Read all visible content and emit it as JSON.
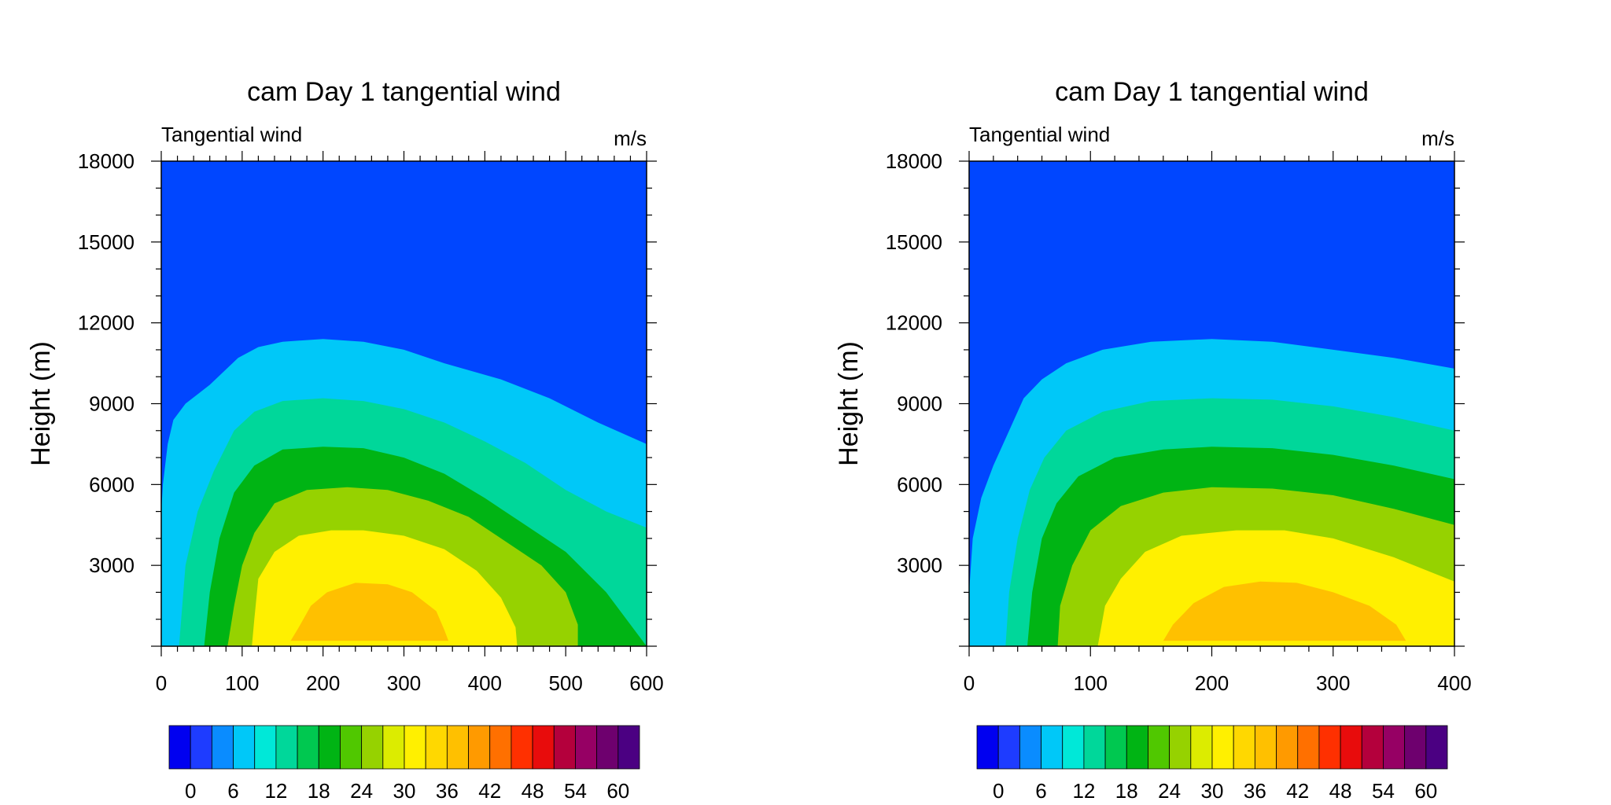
{
  "chart_data": [
    {
      "type": "contour",
      "title": "cam Day 1 tangential wind",
      "left_string": "Tangential wind",
      "right_string": "m/s",
      "ylabel": "Height (m)",
      "xlim": [
        0,
        600
      ],
      "ylim": [
        0,
        18000
      ],
      "x_ticks": [
        "0",
        "100",
        "200",
        "300",
        "400",
        "500",
        "600"
      ],
      "y_ticks": [
        "3000",
        "6000",
        "9000",
        "12000",
        "15000",
        "18000"
      ],
      "contour_bands": [
        {
          "min": 6,
          "max": 12,
          "points": [
            [
              0,
              5000
            ],
            [
              2,
              6000
            ],
            [
              8,
              7500
            ],
            [
              15,
              8400
            ],
            [
              30,
              9000
            ],
            [
              60,
              9700
            ],
            [
              95,
              10700
            ],
            [
              120,
              11100
            ],
            [
              150,
              11300
            ],
            [
              200,
              11400
            ],
            [
              250,
              11300
            ],
            [
              300,
              11000
            ],
            [
              350,
              10500
            ],
            [
              420,
              9900
            ],
            [
              480,
              9200
            ],
            [
              540,
              8300
            ],
            [
              600,
              7500
            ],
            [
              600,
              0
            ],
            [
              0,
              0
            ]
          ]
        },
        {
          "min": 12,
          "max": 18,
          "points": [
            [
              22,
              0
            ],
            [
              30,
              3000
            ],
            [
              45,
              5000
            ],
            [
              65,
              6500
            ],
            [
              90,
              8000
            ],
            [
              115,
              8700
            ],
            [
              150,
              9100
            ],
            [
              200,
              9200
            ],
            [
              250,
              9100
            ],
            [
              300,
              8800
            ],
            [
              350,
              8300
            ],
            [
              400,
              7600
            ],
            [
              450,
              6800
            ],
            [
              500,
              5800
            ],
            [
              550,
              5000
            ],
            [
              600,
              4400
            ],
            [
              600,
              0
            ]
          ]
        },
        {
          "min": 18,
          "max": 24,
          "points": [
            [
              53,
              0
            ],
            [
              60,
              2000
            ],
            [
              72,
              4000
            ],
            [
              90,
              5700
            ],
            [
              115,
              6700
            ],
            [
              150,
              7300
            ],
            [
              200,
              7400
            ],
            [
              250,
              7350
            ],
            [
              300,
              7000
            ],
            [
              350,
              6400
            ],
            [
              400,
              5500
            ],
            [
              450,
              4500
            ],
            [
              500,
              3500
            ],
            [
              550,
              2000
            ],
            [
              600,
              0
            ]
          ]
        },
        {
          "min": 24,
          "max": 30,
          "points": [
            [
              82,
              0
            ],
            [
              90,
              1500
            ],
            [
              100,
              3000
            ],
            [
              115,
              4200
            ],
            [
              140,
              5300
            ],
            [
              180,
              5800
            ],
            [
              230,
              5900
            ],
            [
              280,
              5800
            ],
            [
              330,
              5400
            ],
            [
              380,
              4800
            ],
            [
              420,
              4000
            ],
            [
              470,
              3000
            ],
            [
              500,
              2000
            ],
            [
              515,
              800
            ],
            [
              515,
              0
            ]
          ]
        },
        {
          "min": 30,
          "max": 36,
          "points": [
            [
              112,
              0
            ],
            [
              115,
              1000
            ],
            [
              120,
              2500
            ],
            [
              140,
              3500
            ],
            [
              170,
              4100
            ],
            [
              210,
              4300
            ],
            [
              250,
              4300
            ],
            [
              300,
              4100
            ],
            [
              350,
              3600
            ],
            [
              390,
              2800
            ],
            [
              420,
              1800
            ],
            [
              438,
              700
            ],
            [
              440,
              0
            ]
          ]
        },
        {
          "min": 36,
          "max": 42,
          "points": [
            [
              160,
              200
            ],
            [
              170,
              700
            ],
            [
              185,
              1500
            ],
            [
              205,
              2000
            ],
            [
              240,
              2350
            ],
            [
              280,
              2300
            ],
            [
              310,
              2000
            ],
            [
              340,
              1300
            ],
            [
              350,
              600
            ],
            [
              355,
              200
            ]
          ]
        }
      ]
    },
    {
      "type": "contour",
      "title": "cam Day 1 tangential wind",
      "left_string": "Tangential wind",
      "right_string": "m/s",
      "ylabel": "Height (m)",
      "xlim": [
        0,
        400
      ],
      "ylim": [
        0,
        18000
      ],
      "x_ticks": [
        "0",
        "100",
        "200",
        "300",
        "400"
      ],
      "y_ticks": [
        "3000",
        "6000",
        "9000",
        "12000",
        "15000",
        "18000"
      ],
      "contour_bands": [
        {
          "min": 6,
          "max": 12,
          "points": [
            [
              0,
              2000
            ],
            [
              3,
              4000
            ],
            [
              10,
              5500
            ],
            [
              20,
              6700
            ],
            [
              35,
              8200
            ],
            [
              45,
              9200
            ],
            [
              60,
              9900
            ],
            [
              80,
              10500
            ],
            [
              110,
              11000
            ],
            [
              150,
              11300
            ],
            [
              200,
              11400
            ],
            [
              250,
              11300
            ],
            [
              300,
              11000
            ],
            [
              350,
              10700
            ],
            [
              400,
              10300
            ],
            [
              400,
              0
            ],
            [
              0,
              0
            ]
          ]
        },
        {
          "min": 12,
          "max": 18,
          "points": [
            [
              30,
              0
            ],
            [
              33,
              2000
            ],
            [
              40,
              4000
            ],
            [
              50,
              5800
            ],
            [
              62,
              7000
            ],
            [
              80,
              8000
            ],
            [
              110,
              8700
            ],
            [
              150,
              9100
            ],
            [
              200,
              9200
            ],
            [
              250,
              9150
            ],
            [
              300,
              8900
            ],
            [
              350,
              8500
            ],
            [
              400,
              8000
            ],
            [
              400,
              0
            ]
          ]
        },
        {
          "min": 18,
          "max": 24,
          "points": [
            [
              48,
              0
            ],
            [
              52,
              2000
            ],
            [
              60,
              4000
            ],
            [
              72,
              5300
            ],
            [
              90,
              6300
            ],
            [
              120,
              7000
            ],
            [
              160,
              7300
            ],
            [
              200,
              7400
            ],
            [
              250,
              7350
            ],
            [
              300,
              7100
            ],
            [
              350,
              6700
            ],
            [
              400,
              6200
            ],
            [
              400,
              0
            ]
          ]
        },
        {
          "min": 24,
          "max": 30,
          "points": [
            [
              73,
              0
            ],
            [
              75,
              1500
            ],
            [
              85,
              3000
            ],
            [
              100,
              4300
            ],
            [
              125,
              5200
            ],
            [
              160,
              5700
            ],
            [
              200,
              5900
            ],
            [
              250,
              5850
            ],
            [
              300,
              5600
            ],
            [
              350,
              5100
            ],
            [
              400,
              4500
            ],
            [
              400,
              0
            ]
          ]
        },
        {
          "min": 30,
          "max": 36,
          "points": [
            [
              106,
              0
            ],
            [
              112,
              1500
            ],
            [
              125,
              2500
            ],
            [
              145,
              3500
            ],
            [
              175,
              4100
            ],
            [
              220,
              4300
            ],
            [
              260,
              4300
            ],
            [
              300,
              4000
            ],
            [
              350,
              3300
            ],
            [
              400,
              2400
            ],
            [
              400,
              0
            ]
          ]
        },
        {
          "min": 36,
          "max": 42,
          "points": [
            [
              160,
              200
            ],
            [
              168,
              800
            ],
            [
              185,
              1600
            ],
            [
              210,
              2200
            ],
            [
              240,
              2400
            ],
            [
              270,
              2350
            ],
            [
              300,
              2000
            ],
            [
              330,
              1500
            ],
            [
              352,
              800
            ],
            [
              360,
              200
            ]
          ]
        }
      ]
    }
  ],
  "colorbar": {
    "labels": [
      "0",
      "6",
      "12",
      "18",
      "24",
      "30",
      "36",
      "42",
      "48",
      "54",
      "60"
    ],
    "colors": [
      "#0000f0",
      "#1e3cff",
      "#0a8cff",
      "#00c8f8",
      "#00e8d8",
      "#00d79a",
      "#00c850",
      "#00b414",
      "#50c800",
      "#96d200",
      "#dcec00",
      "#fff000",
      "#ffd800",
      "#ffc000",
      "#ff9a00",
      "#ff7000",
      "#ff3000",
      "#e80c0c",
      "#b4003c",
      "#960064",
      "#6e006e",
      "#4b0082"
    ]
  },
  "colors": {
    "background": "#0046ff"
  }
}
